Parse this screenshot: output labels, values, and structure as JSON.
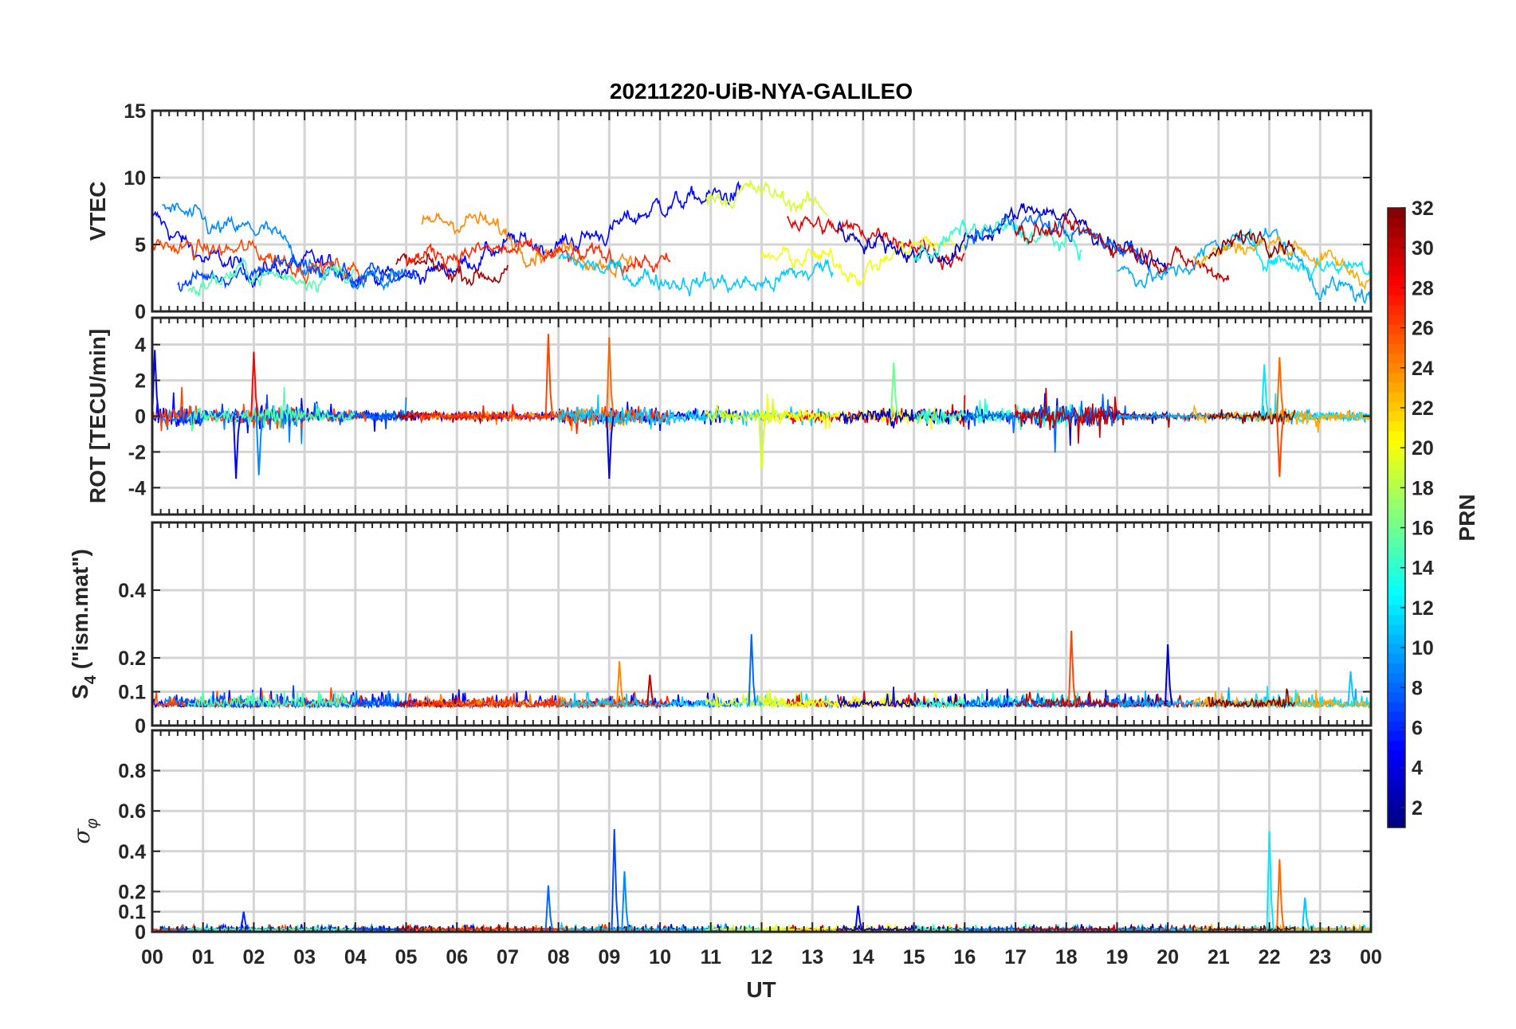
{
  "chart_data": {
    "type": "line",
    "title": "20211220-UiB-NYA-GALILEO",
    "xlabel": "UT",
    "xlim": [
      0,
      24
    ],
    "x_tick_labels": [
      "00",
      "01",
      "02",
      "03",
      "04",
      "05",
      "06",
      "07",
      "08",
      "09",
      "10",
      "11",
      "12",
      "13",
      "14",
      "15",
      "16",
      "17",
      "18",
      "19",
      "20",
      "21",
      "22",
      "23",
      "00"
    ],
    "grid": true,
    "panels": [
      {
        "id": "vtec",
        "ylabel": "VTEC",
        "ylim": [
          0,
          15
        ],
        "yticks": [
          0,
          5,
          10,
          15
        ],
        "ytick_labels": [
          "0",
          "5",
          "10",
          "15"
        ]
      },
      {
        "id": "rot",
        "ylabel": "ROT [TECU/min]",
        "ylim": [
          -5.5,
          5.5
        ],
        "yticks": [
          -4,
          -2,
          0,
          2,
          4
        ],
        "ytick_labels": [
          "-4",
          "-2",
          "0",
          "2",
          "4"
        ]
      },
      {
        "id": "s4",
        "ylabel": "S4 (\"ism.mat\")",
        "ylabel_main": "S",
        "ylabel_sub": "4",
        "ylabel_rest": " (\"ism.mat\")",
        "ylim": [
          0,
          0.6
        ],
        "yticks": [
          0,
          0.1,
          0.2,
          0.4
        ],
        "ytick_labels": [
          "0",
          "0.1",
          "0.2",
          "0.4"
        ]
      },
      {
        "id": "sigma",
        "ylabel": "σφ",
        "ylabel_main": "σ",
        "ylabel_sub": "φ",
        "ylim": [
          0,
          1
        ],
        "yticks": [
          0,
          0.1,
          0.2,
          0.4,
          0.6,
          0.8
        ],
        "ytick_labels": [
          "0",
          "0.1",
          "0.2",
          "0.4",
          "0.6",
          "0.8"
        ]
      }
    ],
    "colorbar": {
      "label": "PRN",
      "colormap": "jet",
      "range": [
        1,
        32
      ],
      "ticks": [
        2,
        4,
        6,
        8,
        10,
        12,
        14,
        16,
        18,
        20,
        22,
        24,
        26,
        28,
        30,
        32
      ],
      "tick_labels": [
        "2",
        "4",
        "6",
        "8",
        "10",
        "12",
        "14",
        "16",
        "18",
        "20",
        "22",
        "24",
        "26",
        "28",
        "30",
        "32"
      ]
    },
    "series": [
      {
        "prn": 5,
        "start": 0.0,
        "end": 11.6,
        "vtec_hourly": [
          7,
          4,
          3,
          3.5,
          3,
          2.5,
          3.5,
          5,
          5,
          6,
          8,
          8.5
        ]
      },
      {
        "prn": 9,
        "start": 0.2,
        "end": 5.0,
        "vtec_hourly": [
          8,
          6,
          6,
          3,
          2.5,
          3
        ]
      },
      {
        "prn": 26,
        "start": 0.0,
        "end": 4.2,
        "vtec_hourly": [
          5,
          4.5,
          4.5,
          3.5,
          3
        ]
      },
      {
        "prn": 7,
        "start": 0.5,
        "end": 5.2,
        "vtec_hourly": [
          2,
          3,
          3.5,
          3,
          2.5,
          3
        ]
      },
      {
        "prn": 15,
        "start": 0.7,
        "end": 4.0,
        "vtec_hourly": [
          1.5,
          3,
          2.5,
          3
        ]
      },
      {
        "prn": 31,
        "start": 4.8,
        "end": 7.0,
        "vtec_hourly": [
          3.5,
          3,
          2.8
        ]
      },
      {
        "prn": 24,
        "start": 5.3,
        "end": 9.5,
        "vtec_hourly": [
          6.5,
          7,
          5,
          4.5,
          3.5
        ]
      },
      {
        "prn": 27,
        "start": 5.0,
        "end": 10.2,
        "vtec_hourly": [
          4,
          4.5,
          4.5,
          4,
          4,
          3.5
        ]
      },
      {
        "prn": 11,
        "start": 8.0,
        "end": 13.4,
        "vtec_hourly": [
          4,
          3,
          2.5,
          2.2,
          2,
          3
        ]
      },
      {
        "prn": 19,
        "start": 10.9,
        "end": 13.3,
        "vtec_hourly": [
          8.5,
          9,
          8
        ]
      },
      {
        "prn": 29,
        "start": 12.5,
        "end": 16.0,
        "vtec_hourly": [
          7,
          6,
          6,
          4.5
        ]
      },
      {
        "prn": 20,
        "start": 12.0,
        "end": 16.0,
        "vtec_hourly": [
          4,
          4,
          3,
          5,
          5
        ]
      },
      {
        "prn": 3,
        "start": 13.5,
        "end": 20.0,
        "vtec_hourly": [
          6,
          5,
          4,
          6,
          8,
          6,
          4
        ]
      },
      {
        "prn": 14,
        "start": 15.0,
        "end": 18.3,
        "vtec_hourly": [
          4,
          6,
          6,
          5
        ]
      },
      {
        "prn": 8,
        "start": 16.0,
        "end": 19.5,
        "vtec_hourly": [
          5,
          7,
          6,
          5
        ]
      },
      {
        "prn": 30,
        "start": 17.0,
        "end": 21.2,
        "vtec_hourly": [
          6,
          6,
          5,
          4,
          3
        ]
      },
      {
        "prn": 10,
        "start": 19.0,
        "end": 24.0,
        "vtec_hourly": [
          3,
          2.5,
          5,
          6,
          2,
          1
        ]
      },
      {
        "prn": 12,
        "start": 21.5,
        "end": 24.0,
        "vtec_hourly": [
          5,
          3.5,
          3.5
        ]
      },
      {
        "prn": 23,
        "start": 20.5,
        "end": 24.0,
        "vtec_hourly": [
          4,
          5,
          5,
          3,
          2.5
        ]
      },
      {
        "prn": 32,
        "start": 20.8,
        "end": 22.5,
        "vtec_hourly": [
          4,
          6,
          5
        ]
      }
    ],
    "rot_activity_hourly": [
      1.2,
      0.8,
      1.2,
      0.6,
      0.5,
      0.5,
      0.5,
      0.5,
      1.0,
      1.0,
      0.8,
      0.7,
      0.8,
      0.6,
      0.9,
      0.8,
      0.7,
      1.2,
      1.2,
      0.4,
      0.4,
      0.5,
      0.8,
      0.5
    ],
    "rot_spikes": [
      {
        "prn": 26,
        "t": 7.8,
        "v": 4.6
      },
      {
        "prn": 25,
        "t": 9.0,
        "v": 4.4
      },
      {
        "prn": 4,
        "t": 9.0,
        "v": -3.5
      },
      {
        "prn": 28,
        "t": 2.0,
        "v": 3.6
      },
      {
        "prn": 5,
        "t": 1.65,
        "v": -3.5
      },
      {
        "prn": 9,
        "t": 2.1,
        "v": -3.3
      },
      {
        "prn": 25,
        "t": 22.2,
        "v": 3.3
      },
      {
        "prn": 26,
        "t": 22.2,
        "v": -3.4
      },
      {
        "prn": 12,
        "t": 21.9,
        "v": 2.9
      },
      {
        "prn": 16,
        "t": 14.6,
        "v": 3.0
      },
      {
        "prn": 19,
        "t": 12.0,
        "v": -3.0
      },
      {
        "prn": 5,
        "t": 0.05,
        "v": 3.7
      }
    ],
    "s4_spikes": [
      {
        "prn": 8,
        "t": 11.8,
        "v": 0.27
      },
      {
        "prn": 26,
        "t": 18.1,
        "v": 0.28
      },
      {
        "prn": 3,
        "t": 20.0,
        "v": 0.24
      },
      {
        "prn": 24,
        "t": 9.2,
        "v": 0.19
      },
      {
        "prn": 30,
        "t": 9.8,
        "v": 0.15
      },
      {
        "prn": 11,
        "t": 23.6,
        "v": 0.16
      }
    ],
    "sigma_spikes": [
      {
        "prn": 7,
        "t": 9.1,
        "v": 0.51
      },
      {
        "prn": 9,
        "t": 9.3,
        "v": 0.3
      },
      {
        "prn": 8,
        "t": 7.8,
        "v": 0.23
      },
      {
        "prn": 12,
        "t": 22.0,
        "v": 0.5
      },
      {
        "prn": 25,
        "t": 22.2,
        "v": 0.36
      },
      {
        "prn": 11,
        "t": 22.7,
        "v": 0.17
      },
      {
        "prn": 5,
        "t": 13.9,
        "v": 0.13
      },
      {
        "prn": 6,
        "t": 1.8,
        "v": 0.1
      }
    ]
  }
}
